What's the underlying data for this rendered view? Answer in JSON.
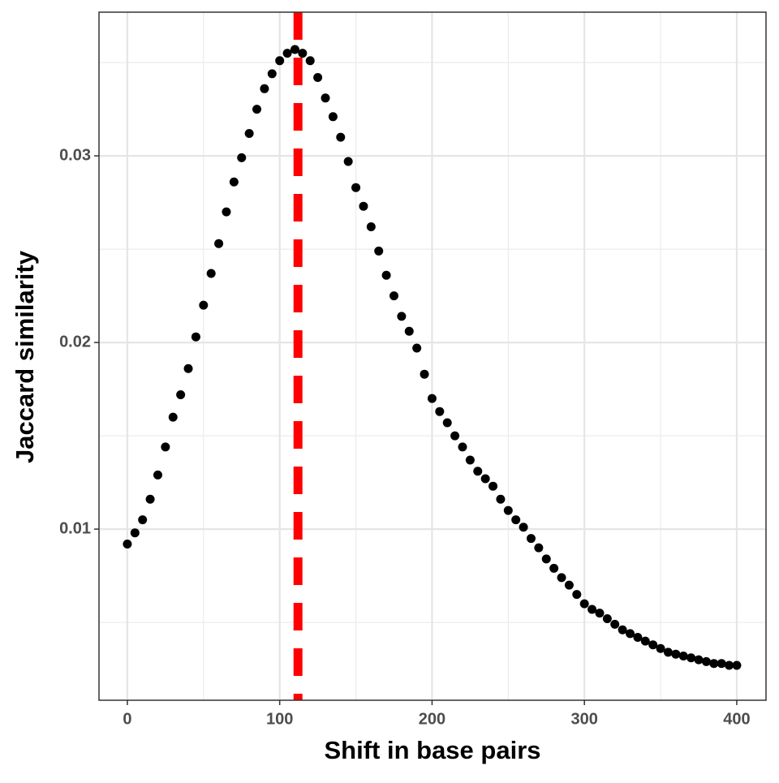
{
  "chart_data": {
    "type": "scatter",
    "x_label": "Shift in base pairs",
    "y_label": "Jaccard similarity",
    "x": [
      0,
      5,
      10,
      15,
      20,
      25,
      30,
      35,
      40,
      45,
      50,
      55,
      60,
      65,
      70,
      75,
      80,
      85,
      90,
      95,
      100,
      105,
      110,
      115,
      120,
      125,
      130,
      135,
      140,
      145,
      150,
      155,
      160,
      165,
      170,
      175,
      180,
      185,
      190,
      195,
      200,
      205,
      210,
      215,
      220,
      225,
      230,
      235,
      240,
      245,
      250,
      255,
      260,
      265,
      270,
      275,
      280,
      285,
      290,
      295,
      300,
      305,
      310,
      315,
      320,
      325,
      330,
      335,
      340,
      345,
      350,
      355,
      360,
      365,
      370,
      375,
      380,
      385,
      390,
      395,
      400
    ],
    "values": [
      0.0092,
      0.0098,
      0.0105,
      0.0116,
      0.0129,
      0.0144,
      0.016,
      0.0172,
      0.0186,
      0.0203,
      0.022,
      0.0237,
      0.0253,
      0.027,
      0.0286,
      0.0299,
      0.0312,
      0.0325,
      0.0336,
      0.0344,
      0.0351,
      0.0355,
      0.0357,
      0.0355,
      0.0351,
      0.0342,
      0.0331,
      0.0321,
      0.031,
      0.0297,
      0.0283,
      0.0273,
      0.0262,
      0.0249,
      0.0236,
      0.0225,
      0.0214,
      0.0206,
      0.0197,
      0.0183,
      0.017,
      0.0163,
      0.0157,
      0.015,
      0.0144,
      0.0137,
      0.0131,
      0.0127,
      0.0123,
      0.0116,
      0.011,
      0.0105,
      0.0101,
      0.0095,
      0.009,
      0.0084,
      0.0079,
      0.0074,
      0.007,
      0.0065,
      0.006,
      0.0057,
      0.0055,
      0.0052,
      0.0049,
      0.0046,
      0.0044,
      0.0042,
      0.004,
      0.0038,
      0.0036,
      0.0034,
      0.0033,
      0.0032,
      0.0031,
      0.003,
      0.0029,
      0.0028,
      0.0028,
      0.0027,
      0.0027
    ],
    "color": "#000000",
    "vline": 112,
    "vline_color": "#ff0000",
    "xlim": [
      -18.6,
      419.2
    ],
    "ylim": [
      0.00083,
      0.0377
    ],
    "xticks": [
      0,
      100,
      200,
      300,
      400
    ],
    "yticks": [
      0.01,
      0.02,
      0.03
    ],
    "x_minor_grid": [
      50,
      150,
      250,
      350
    ],
    "y_minor_grid": [
      0.005,
      0.015,
      0.025,
      0.035
    ],
    "grid": true
  }
}
